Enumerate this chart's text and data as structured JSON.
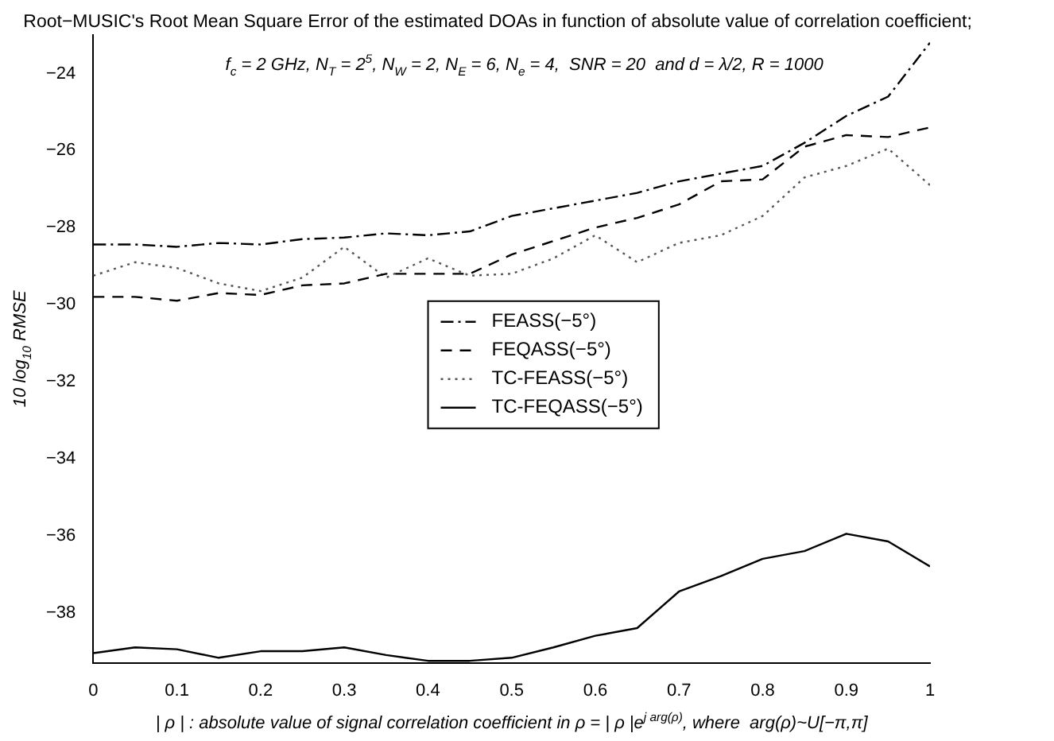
{
  "chart_data": {
    "type": "line",
    "title": "Root−MUSIC's Root Mean Square Error of the estimated DOAs in function of absolute value of correlation coefficient;",
    "subtitle": "f$_{c}$ = 2 GHz, N$_{T}$ = 2$^{5}$, N$_{W}$ = 2, N$_{E}$ = 6, N$_{e}$ = 4,  SNR = 20  and d = λ/2, R = 1000",
    "xlabel": "| ρ | : absolute value of signal correlation coefficient in ρ = | ρ |e$^{j arg(ρ)}$, where  arg(ρ)~U[−π,π]",
    "ylabel": "10 log$_{10}$ RMSE",
    "x": [
      0,
      0.05,
      0.1,
      0.15,
      0.2,
      0.25,
      0.3,
      0.35,
      0.4,
      0.45,
      0.5,
      0.55,
      0.6,
      0.65,
      0.7,
      0.75,
      0.8,
      0.85,
      0.9,
      0.95,
      1
    ],
    "series": [
      {
        "name": "FEASS(−5°)",
        "color": "#000000",
        "line_style": "dashdot",
        "values": [
          -28.44,
          -28.44,
          -28.5,
          -28.4,
          -28.44,
          -28.3,
          -28.26,
          -28.15,
          -28.2,
          -28.1,
          -27.7,
          -27.5,
          -27.3,
          -27.1,
          -26.8,
          -26.6,
          -26.4,
          -25.8,
          -25.1,
          -24.6,
          -23.2
        ]
      },
      {
        "name": "FEQASS(−5°)",
        "color": "#000000",
        "line_style": "dashed",
        "values": [
          -29.8,
          -29.8,
          -29.9,
          -29.7,
          -29.75,
          -29.5,
          -29.45,
          -29.2,
          -29.2,
          -29.2,
          -28.7,
          -28.35,
          -28.0,
          -27.75,
          -27.4,
          -26.8,
          -26.75,
          -25.9,
          -25.6,
          -25.65,
          -25.4
        ]
      },
      {
        "name": "TC-FEASS(−5°)",
        "color": "#555555",
        "line_style": "dotted",
        "values": [
          -29.25,
          -28.9,
          -29.05,
          -29.45,
          -29.65,
          -29.3,
          -28.5,
          -29.3,
          -28.8,
          -29.25,
          -29.2,
          -28.8,
          -28.2,
          -28.9,
          -28.4,
          -28.2,
          -27.7,
          -26.7,
          -26.4,
          -25.95,
          -26.9
        ]
      },
      {
        "name": "TC-FEQASS(−5°)",
        "color": "#000000",
        "line_style": "solid",
        "values": [
          -39.05,
          -38.9,
          -38.95,
          -39.17,
          -39.0,
          -39.0,
          -38.9,
          -39.1,
          -39.25,
          -39.25,
          -39.17,
          -38.9,
          -38.6,
          -38.4,
          -37.45,
          -37.05,
          -36.6,
          -36.4,
          -35.95,
          -36.15,
          -36.8
        ]
      }
    ],
    "xlim": [
      0,
      1
    ],
    "xticks": [
      0,
      0.1,
      0.2,
      0.3,
      0.4,
      0.5,
      0.6,
      0.7,
      0.8,
      0.9,
      1
    ],
    "ylim": [
      -39.3,
      -23
    ],
    "yticks": [
      -38,
      -36,
      -34,
      -32,
      -30,
      -28,
      -26,
      -24
    ],
    "grid": false,
    "legend": "center",
    "marker": "none"
  }
}
